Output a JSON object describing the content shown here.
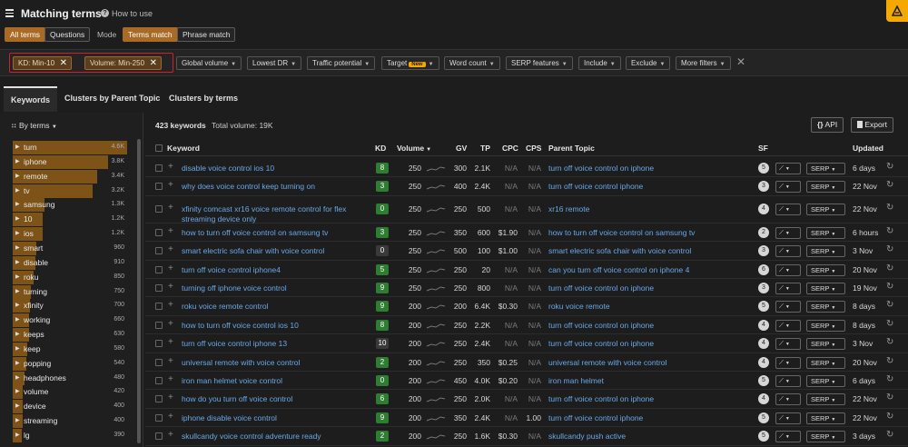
{
  "header": {
    "title": "Matching terms",
    "help_label": "How to use",
    "help_glyph": "?"
  },
  "mode_bar": {
    "all_terms": "All terms",
    "questions": "Questions",
    "mode_label": "Mode",
    "terms_match": "Terms match",
    "phrase_match": "Phrase match"
  },
  "filters": {
    "active": [
      {
        "label": "KD: Min-10"
      },
      {
        "label": "Volume: Min-250"
      }
    ],
    "buttons": [
      {
        "label": "Global volume"
      },
      {
        "label": "Lowest DR"
      },
      {
        "label": "Traffic potential"
      },
      {
        "label": "Target",
        "badge": "New"
      },
      {
        "label": "Word count"
      },
      {
        "label": "SERP features"
      },
      {
        "label": "Include"
      },
      {
        "label": "Exclude"
      },
      {
        "label": "More filters"
      }
    ],
    "close_glyph": "✕",
    "caret_glyph": "▼"
  },
  "tabs": [
    {
      "label": "Keywords",
      "active": true
    },
    {
      "label": "Clusters by Parent Topic",
      "active": false
    },
    {
      "label": "Clusters by terms",
      "active": false
    }
  ],
  "sidebar": {
    "mode_label": "By terms",
    "terms": [
      {
        "name": "turn",
        "count": "4.6K",
        "share": 1.0
      },
      {
        "name": "iphone",
        "count": "3.8K",
        "share": 0.83
      },
      {
        "name": "remote",
        "count": "3.4K",
        "share": 0.74
      },
      {
        "name": "tv",
        "count": "3.2K",
        "share": 0.7
      },
      {
        "name": "samsung",
        "count": "1.3K",
        "share": 0.28
      },
      {
        "name": "10",
        "count": "1.2K",
        "share": 0.26
      },
      {
        "name": "ios",
        "count": "1.2K",
        "share": 0.26
      },
      {
        "name": "smart",
        "count": "960",
        "share": 0.21
      },
      {
        "name": "disable",
        "count": "910",
        "share": 0.2
      },
      {
        "name": "roku",
        "count": "850",
        "share": 0.18
      },
      {
        "name": "turning",
        "count": "750",
        "share": 0.16
      },
      {
        "name": "xfinity",
        "count": "700",
        "share": 0.15
      },
      {
        "name": "working",
        "count": "660",
        "share": 0.14
      },
      {
        "name": "keeps",
        "count": "630",
        "share": 0.14
      },
      {
        "name": "keep",
        "count": "580",
        "share": 0.13
      },
      {
        "name": "popping",
        "count": "540",
        "share": 0.12
      },
      {
        "name": "headphones",
        "count": "480",
        "share": 0.1
      },
      {
        "name": "volume",
        "count": "420",
        "share": 0.09
      },
      {
        "name": "device",
        "count": "400",
        "share": 0.09
      },
      {
        "name": "streaming",
        "count": "400",
        "share": 0.09
      },
      {
        "name": "lg",
        "count": "390",
        "share": 0.08
      }
    ]
  },
  "summary": {
    "keywords": "423 keywords",
    "total_volume": "Total volume: 19K",
    "api_label": "API",
    "api_glyph": "{}",
    "export_label": "Export"
  },
  "columns": {
    "keyword": "Keyword",
    "kd": "KD",
    "volume": "Volume",
    "gv": "GV",
    "tp": "TP",
    "cpc": "CPC",
    "cps": "CPS",
    "parent_topic": "Parent Topic",
    "sf": "SF",
    "updated": "Updated"
  },
  "row_controls": {
    "serp_label": "SERP",
    "trend_glyph": "⟋",
    "plus_glyph": "+",
    "refresh_glyph": "↻"
  },
  "rows": [
    {
      "keyword": "disable voice control ios 10",
      "kd": "8",
      "kd_color": "#2e7d32",
      "volume": "250",
      "gv": "300",
      "tp": "2.1K",
      "cpc": "N/A",
      "cps": "N/A",
      "parent": "turn off voice control on iphone",
      "sf": "5",
      "updated": "6 days"
    },
    {
      "keyword": "why does voice control keep turning on",
      "kd": "3",
      "kd_color": "#2e7d32",
      "volume": "250",
      "gv": "400",
      "tp": "2.4K",
      "cpc": "N/A",
      "cps": "N/A",
      "parent": "turn off voice control iphone",
      "sf": "3",
      "updated": "22 Nov"
    },
    {
      "keyword": "xfinity comcast xr16 voice remote control for flex streaming device only",
      "kd": "0",
      "kd_color": "#2e7d32",
      "volume": "250",
      "gv": "250",
      "tp": "500",
      "cpc": "N/A",
      "cps": "N/A",
      "parent": "xr16 remote",
      "sf": "4",
      "updated": "22 Nov"
    },
    {
      "keyword": "how to turn off voice control on samsung tv",
      "kd": "3",
      "kd_color": "#2e7d32",
      "volume": "250",
      "gv": "350",
      "tp": "600",
      "cpc": "$1.90",
      "cps": "N/A",
      "parent": "how to turn off voice control on samsung tv",
      "sf": "2",
      "updated": "6 hours"
    },
    {
      "keyword": "smart electric sofa chair with voice control",
      "kd": "0",
      "kd_color": "#3a3a3a",
      "volume": "250",
      "gv": "500",
      "tp": "100",
      "cpc": "$1.00",
      "cps": "N/A",
      "parent": "smart electric sofa chair with voice control",
      "sf": "3",
      "updated": "3 Nov"
    },
    {
      "keyword": "turn off voice control iphone4",
      "kd": "5",
      "kd_color": "#2e7d32",
      "volume": "250",
      "gv": "250",
      "tp": "20",
      "cpc": "N/A",
      "cps": "N/A",
      "parent": "can you turn off voice control on iphone 4",
      "sf": "6",
      "updated": "20 Nov"
    },
    {
      "keyword": "turning off iphone voice control",
      "kd": "9",
      "kd_color": "#2e7d32",
      "volume": "250",
      "gv": "250",
      "tp": "800",
      "cpc": "N/A",
      "cps": "N/A",
      "parent": "turn off voice control on iphone",
      "sf": "3",
      "updated": "19 Nov"
    },
    {
      "keyword": "roku voice remote control",
      "kd": "9",
      "kd_color": "#2e7d32",
      "volume": "200",
      "gv": "200",
      "tp": "6.4K",
      "cpc": "$0.30",
      "cps": "N/A",
      "parent": "roku voice remote",
      "sf": "5",
      "updated": "8 days"
    },
    {
      "keyword": "how to turn off voice control ios 10",
      "kd": "8",
      "kd_color": "#2e7d32",
      "volume": "200",
      "gv": "250",
      "tp": "2.2K",
      "cpc": "N/A",
      "cps": "N/A",
      "parent": "turn off voice control on iphone",
      "sf": "4",
      "updated": "8 days"
    },
    {
      "keyword": "turn off voice control iphone 13",
      "kd": "10",
      "kd_color": "#3a3a3a",
      "volume": "200",
      "gv": "250",
      "tp": "2.4K",
      "cpc": "N/A",
      "cps": "N/A",
      "parent": "turn off voice control on iphone",
      "sf": "4",
      "updated": "3 Nov"
    },
    {
      "keyword": "universal remote with voice control",
      "kd": "2",
      "kd_color": "#2e7d32",
      "volume": "200",
      "gv": "250",
      "tp": "350",
      "cpc": "$0.25",
      "cps": "N/A",
      "parent": "universal remote with voice control",
      "sf": "4",
      "updated": "20 Nov"
    },
    {
      "keyword": "iron man helmet voice control",
      "kd": "0",
      "kd_color": "#2e7d32",
      "volume": "200",
      "gv": "450",
      "tp": "4.0K",
      "cpc": "$0.20",
      "cps": "N/A",
      "parent": "iron man helmet",
      "sf": "5",
      "updated": "6 days"
    },
    {
      "keyword": "how do you turn off voice control",
      "kd": "6",
      "kd_color": "#2e7d32",
      "volume": "200",
      "gv": "250",
      "tp": "2.0K",
      "cpc": "N/A",
      "cps": "N/A",
      "parent": "turn off voice control on iphone",
      "sf": "4",
      "updated": "22 Nov"
    },
    {
      "keyword": "iphone disable voice control",
      "kd": "9",
      "kd_color": "#2e7d32",
      "volume": "200",
      "gv": "350",
      "tp": "2.4K",
      "cpc": "N/A",
      "cps": "1.00",
      "parent": "turn off voice control iphone",
      "sf": "5",
      "updated": "22 Nov"
    },
    {
      "keyword": "skullcandy voice control adventure ready",
      "kd": "2",
      "kd_color": "#2e7d32",
      "volume": "200",
      "gv": "250",
      "tp": "1.6K",
      "cpc": "$0.30",
      "cps": "N/A",
      "parent": "skullcandy push active",
      "sf": "5",
      "updated": "3 days"
    }
  ]
}
